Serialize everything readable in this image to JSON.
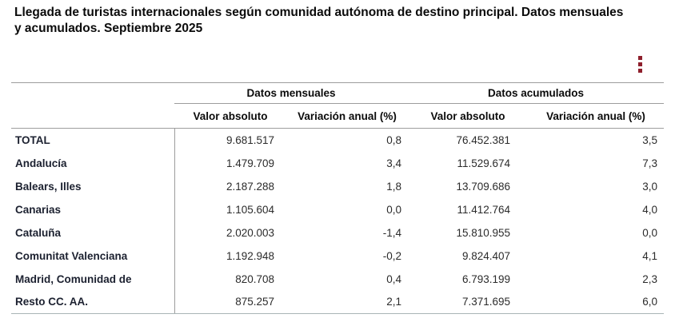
{
  "title": "Llegada de turistas internacionales según comunidad autónoma de destino principal. Datos mensuales y acumulados. Septiembre 2025",
  "toolbar": {
    "kebab_menu_label": "Opciones",
    "kebab_color": "#8e1f2c"
  },
  "colors": {
    "line_gray": "#9d9d9d",
    "bottom_line": "#a9b4b6",
    "title_text": "#0b0b0b",
    "row_label_text": "#1c2130",
    "value_text": "#2b2b2b"
  },
  "table": {
    "group_headers": {
      "monthly": "Datos mensuales",
      "accumulated": "Datos acumulados"
    },
    "sub_headers": {
      "monthly_value": "Valor absoluto",
      "monthly_variation": "Variación anual (%)",
      "accumulated_value": "Valor absoluto",
      "accumulated_variation": "Variación anual (%)"
    },
    "rows": [
      {
        "label": "TOTAL",
        "monthly_value": "9.681.517",
        "monthly_variation": "0,8",
        "accumulated_value": "76.452.381",
        "accumulated_variation": "3,5"
      },
      {
        "label": "Andalucía",
        "monthly_value": "1.479.709",
        "monthly_variation": "3,4",
        "accumulated_value": "11.529.674",
        "accumulated_variation": "7,3"
      },
      {
        "label": "Balears, Illes",
        "monthly_value": "2.187.288",
        "monthly_variation": "1,8",
        "accumulated_value": "13.709.686",
        "accumulated_variation": "3,0"
      },
      {
        "label": "Canarias",
        "monthly_value": "1.105.604",
        "monthly_variation": "0,0",
        "accumulated_value": "11.412.764",
        "accumulated_variation": "4,0"
      },
      {
        "label": "Cataluña",
        "monthly_value": "2.020.003",
        "monthly_variation": "-1,4",
        "accumulated_value": "15.810.955",
        "accumulated_variation": "0,0"
      },
      {
        "label": "Comunitat Valenciana",
        "monthly_value": "1.192.948",
        "monthly_variation": "-0,2",
        "accumulated_value": "9.824.407",
        "accumulated_variation": "4,1"
      },
      {
        "label": "Madrid, Comunidad de",
        "monthly_value": "820.708",
        "monthly_variation": "0,4",
        "accumulated_value": "6.793.199",
        "accumulated_variation": "2,3"
      },
      {
        "label": "Resto CC. AA.",
        "monthly_value": "875.257",
        "monthly_variation": "2,1",
        "accumulated_value": "7.371.695",
        "accumulated_variation": "6,0"
      }
    ]
  }
}
